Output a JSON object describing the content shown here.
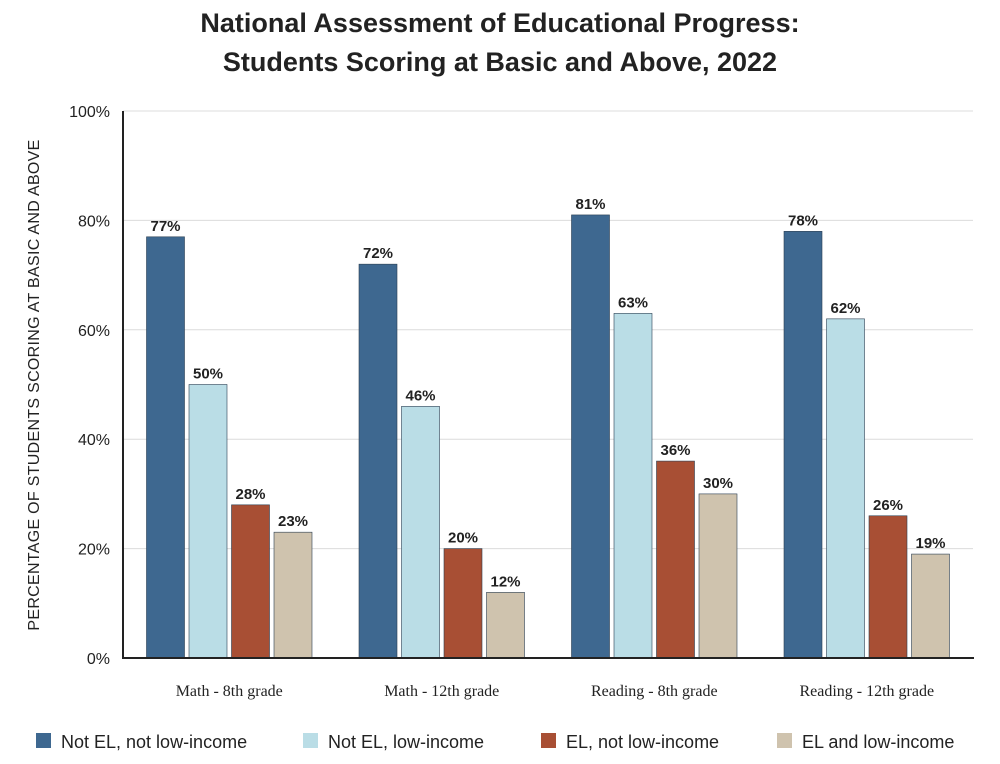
{
  "chart_data": {
    "type": "bar",
    "title": [
      "National Assessment of Educational Progress:",
      "Students Scoring at Basic and Above, 2022"
    ],
    "ylabel": "PERCENTAGE OF STUDENTS SCORING AT BASIC AND ABOVE",
    "xlabel": "",
    "ylim": [
      0,
      100
    ],
    "yticks": [
      "0%",
      "20%",
      "40%",
      "60%",
      "80%",
      "100%"
    ],
    "ytick_values": [
      0,
      20,
      40,
      60,
      80,
      100
    ],
    "grid": true,
    "legend_position": "bottom",
    "categories": [
      "Math - 8th grade",
      "Math - 12th grade",
      "Reading - 8th grade",
      "Reading - 12th grade"
    ],
    "series": [
      {
        "name": "Not EL, not low-income",
        "color": "#3e6890",
        "values": [
          77,
          72,
          81,
          78
        ],
        "labels": [
          "77%",
          "72%",
          "81%",
          "78%"
        ]
      },
      {
        "name": "Not EL, low-income",
        "color": "#badde6",
        "values": [
          50,
          46,
          63,
          62
        ],
        "labels": [
          "50%",
          "46%",
          "63%",
          "62%"
        ]
      },
      {
        "name": "EL, not low-income",
        "color": "#a84f34",
        "values": [
          28,
          20,
          36,
          26
        ],
        "labels": [
          "28%",
          "20%",
          "36%",
          "26%"
        ]
      },
      {
        "name": "EL and low-income",
        "color": "#cfc3ae",
        "values": [
          23,
          12,
          30,
          19
        ],
        "labels": [
          "23%",
          "12%",
          "30%",
          "19%"
        ]
      }
    ]
  }
}
